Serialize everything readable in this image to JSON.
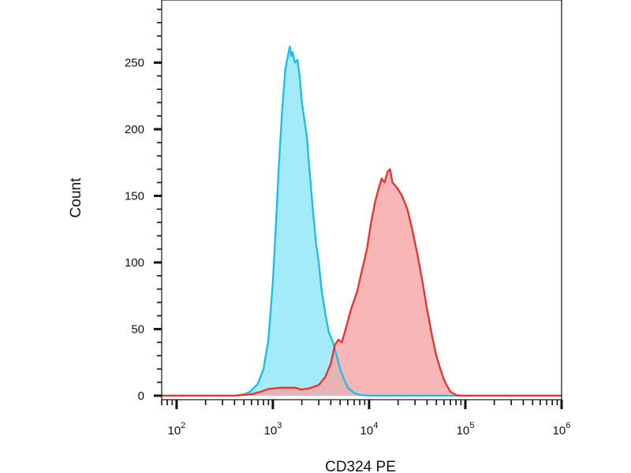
{
  "chart_data": {
    "type": "area",
    "xlabel": "CD324 PE",
    "ylabel": "Count",
    "x_scale": "log",
    "xlim": [
      70,
      1000000
    ],
    "ylim": [
      -3,
      297
    ],
    "x_ticks": [
      {
        "value": 100,
        "base": "10",
        "exp": "2"
      },
      {
        "value": 1000,
        "base": "10",
        "exp": "3"
      },
      {
        "value": 10000,
        "base": "10",
        "exp": "4"
      },
      {
        "value": 100000,
        "base": "10",
        "exp": "5"
      },
      {
        "value": 1000000,
        "base": "10",
        "exp": "6"
      }
    ],
    "y_ticks": [
      "0",
      "50",
      "100",
      "150",
      "200",
      "250"
    ],
    "grid": false,
    "legend": "none",
    "series": [
      {
        "color_fill": "#8fe6f7",
        "color_line": "#22bde6",
        "points": [
          [
            70,
            0
          ],
          [
            400,
            0
          ],
          [
            500,
            1
          ],
          [
            580,
            3
          ],
          [
            700,
            9
          ],
          [
            800,
            20
          ],
          [
            900,
            42
          ],
          [
            1000,
            85
          ],
          [
            1080,
            130
          ],
          [
            1150,
            170
          ],
          [
            1250,
            215
          ],
          [
            1350,
            245
          ],
          [
            1450,
            257
          ],
          [
            1500,
            262
          ],
          [
            1550,
            255
          ],
          [
            1600,
            258
          ],
          [
            1700,
            250
          ],
          [
            1800,
            252
          ],
          [
            1900,
            240
          ],
          [
            2000,
            220
          ],
          [
            2100,
            210
          ],
          [
            2250,
            195
          ],
          [
            2400,
            170
          ],
          [
            2600,
            140
          ],
          [
            2800,
            115
          ],
          [
            3000,
            100
          ],
          [
            3200,
            80
          ],
          [
            3500,
            62
          ],
          [
            3800,
            48
          ],
          [
            4200,
            40
          ],
          [
            4600,
            30
          ],
          [
            5000,
            20
          ],
          [
            5500,
            12
          ],
          [
            6000,
            6
          ],
          [
            7000,
            2
          ],
          [
            8000,
            0.5
          ],
          [
            10000,
            0
          ],
          [
            1000000,
            0
          ]
        ]
      },
      {
        "color_fill": "#f7a6a6",
        "color_line": "#e03838",
        "points": [
          [
            70,
            0
          ],
          [
            400,
            0
          ],
          [
            600,
            1
          ],
          [
            750,
            3
          ],
          [
            900,
            5
          ],
          [
            1200,
            6
          ],
          [
            1700,
            6
          ],
          [
            2000,
            4.5
          ],
          [
            2400,
            5.5
          ],
          [
            3000,
            8
          ],
          [
            3500,
            14
          ],
          [
            4000,
            24
          ],
          [
            4400,
            38
          ],
          [
            4800,
            42
          ],
          [
            5200,
            40
          ],
          [
            5700,
            50
          ],
          [
            6500,
            65
          ],
          [
            7500,
            78
          ],
          [
            8500,
            95
          ],
          [
            9500,
            110
          ],
          [
            10500,
            130
          ],
          [
            11500,
            145
          ],
          [
            12500,
            155
          ],
          [
            13500,
            163
          ],
          [
            14500,
            160
          ],
          [
            15500,
            168
          ],
          [
            16500,
            170
          ],
          [
            17500,
            160
          ],
          [
            18500,
            158
          ],
          [
            20000,
            155
          ],
          [
            22000,
            150
          ],
          [
            25000,
            140
          ],
          [
            28000,
            125
          ],
          [
            32000,
            105
          ],
          [
            36000,
            85
          ],
          [
            40000,
            65
          ],
          [
            45000,
            45
          ],
          [
            50000,
            30
          ],
          [
            55000,
            20
          ],
          [
            60000,
            12
          ],
          [
            65000,
            7
          ],
          [
            70000,
            3
          ],
          [
            80000,
            0.5
          ],
          [
            90000,
            0
          ],
          [
            1000000,
            0
          ]
        ]
      }
    ]
  }
}
